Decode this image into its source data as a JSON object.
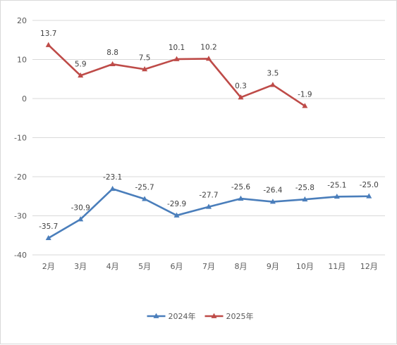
{
  "chart_data": {
    "type": "line",
    "categories": [
      "2月",
      "3月",
      "4月",
      "5月",
      "6月",
      "7月",
      "8月",
      "9月",
      "10月",
      "11月",
      "12月"
    ],
    "series": [
      {
        "name": "2024年",
        "color": "#4a7ebb",
        "values": [
          -35.7,
          -30.9,
          -23.1,
          -25.7,
          -29.9,
          -27.7,
          -25.6,
          -26.4,
          -25.8,
          -25.1,
          -25.0
        ],
        "labels": [
          "-35.7",
          "-30.9",
          "-23.1",
          "-25.7",
          "-29.9",
          "-27.7",
          "-25.6",
          "-26.4",
          "-25.8",
          "-25.1",
          "-25.0"
        ]
      },
      {
        "name": "2025年",
        "color": "#be4b48",
        "values": [
          13.7,
          5.9,
          8.8,
          7.5,
          10.1,
          10.2,
          0.3,
          3.5,
          -1.9,
          null,
          null
        ],
        "labels": [
          "13.7",
          "5.9",
          "8.8",
          "7.5",
          "10.1",
          "10.2",
          "0.3",
          "3.5",
          "-1.9",
          null,
          null
        ]
      }
    ],
    "ylim": [
      -40,
      20
    ],
    "yticks": [
      "20",
      "10",
      "0",
      "-10",
      "-20",
      "-30",
      "-40"
    ],
    "title": "",
    "xlabel": "",
    "ylabel": "",
    "grid": true,
    "gridline_color": "#d9d9d9",
    "marker": "triangle",
    "legend_position": "bottom"
  }
}
